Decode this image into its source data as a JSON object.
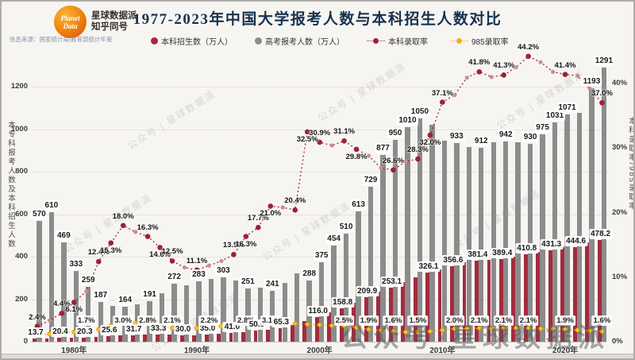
{
  "header": {
    "logo_line1": "Planet",
    "logo_line2": "Data",
    "brand_line1": "星球数据派",
    "brand_line2": "知乎同号",
    "source_note": "信息来源：国家统计局|教育部统计年鉴",
    "title": "1977-2023年中国大学报考人数与本科招生人数对比"
  },
  "legend": [
    {
      "label": "本科招生数（万人）",
      "color": "#a32b3d",
      "type": "dot"
    },
    {
      "label": "高考报考人数（万人）",
      "color": "#8c8c8c",
      "type": "dot"
    },
    {
      "label": "本科录取率",
      "color": "#9b2335",
      "type": "line-dot"
    },
    {
      "label": "985录取率",
      "color": "#eeb41c",
      "type": "line-dot"
    }
  ],
  "axes": {
    "left": {
      "title": "本专科报考人数及本科招生人数",
      "ticks": [
        0,
        200,
        400,
        600,
        800,
        1000,
        1200
      ],
      "max": 1200
    },
    "right": {
      "title": "本科录取率/985录取率",
      "ticks": [
        "0%",
        "10%",
        "20%",
        "30%",
        "40%"
      ],
      "max_pct": 40
    },
    "x": {
      "ticks": [
        {
          "label": "1980年",
          "year": 1980
        },
        {
          "label": "1990年",
          "year": 1990
        },
        {
          "label": "2000年",
          "year": 2000
        },
        {
          "label": "2010年",
          "year": 2010
        },
        {
          "label": "2020年",
          "year": 2020
        }
      ]
    }
  },
  "watermark": {
    "tile": "公众号 | 星球数据派",
    "big": "公众号·星球数据派"
  },
  "chart_data": {
    "type": "bar+line",
    "title": "1977-2023年中国大学报考人数与本科招生人数对比",
    "x_range": [
      1977,
      2023
    ],
    "left_axis_range": [
      0,
      1200
    ],
    "right_axis_range_pct": [
      0,
      40
    ],
    "grid": true,
    "years": [
      1977,
      1978,
      1979,
      1980,
      1981,
      1982,
      1983,
      1984,
      1985,
      1986,
      1987,
      1988,
      1989,
      1990,
      1991,
      1992,
      1993,
      1994,
      1995,
      1996,
      1997,
      1998,
      1999,
      2000,
      2001,
      2002,
      2003,
      2004,
      2005,
      2006,
      2007,
      2008,
      2009,
      2010,
      2011,
      2012,
      2013,
      2014,
      2015,
      2016,
      2017,
      2018,
      2019,
      2020,
      2021,
      2022,
      2023
    ],
    "series": [
      {
        "name": "高考报考人数(万人)",
        "type": "bar",
        "color": "#8c8c8c",
        "values": [
          570,
          610,
          469,
          333,
          259,
          187,
          167,
          164,
          176,
          191,
          228,
          272,
          266,
          283,
          296,
          303,
          286,
          251,
          253,
          241,
          278,
          320,
          288,
          375,
          454,
          510,
          613,
          729,
          877,
          950,
          1010,
          1050,
          1020,
          946,
          933,
          915,
          912,
          939,
          942,
          940,
          930,
          975,
          1031,
          1071,
          1078,
          1193,
          1291
        ],
        "labels": {
          "1977": "570",
          "1978": "610",
          "1979": "469",
          "1980": "333",
          "1981": "259",
          "1982": "187",
          "1984": "164",
          "1986": "191",
          "1988": "272",
          "1990": "283",
          "1992": "303",
          "1994": "251",
          "1996": "241",
          "1999": "288",
          "2000": "375",
          "2001": "454",
          "2002": "510",
          "2003": "613",
          "2004": "729",
          "2005": "877",
          "2006": "950",
          "2007": "1010",
          "2008": "1050",
          "2011": "933",
          "2013": "912",
          "2015": "942",
          "2017": "930",
          "2018": "975",
          "2019": "1031",
          "2020": "1071",
          "2022": "1193",
          "2023": "1291"
        }
      },
      {
        "name": "本科招生数(万人)",
        "type": "bar",
        "color": "#a32b3d",
        "values": [
          13.7,
          16.0,
          20.4,
          20.3,
          20.3,
          23.2,
          25.6,
          29.5,
          31.7,
          32.0,
          33.3,
          34.0,
          30.0,
          31.4,
          35.0,
          37.9,
          41.0,
          46.0,
          50.6,
          55.0,
          65.3,
          78.0,
          98.0,
          116.0,
          138.0,
          158.8,
          183.0,
          209.9,
          236.0,
          253.1,
          282.0,
          302.0,
          326.1,
          340.0,
          356.6,
          374.0,
          381.4,
          385.0,
          389.4,
          400.0,
          410.8,
          422.0,
          431.3,
          443.0,
          444.6,
          468.0,
          478.2
        ],
        "labels": {
          "1977": "13.7",
          "1979": "20.4",
          "1981": "20.3",
          "1983": "25.6",
          "1985": "31.7",
          "1987": "33.3",
          "1989": "30.0",
          "1991": "35.0",
          "1993": "41.0",
          "1995": "50.6",
          "1997": "65.3",
          "2000": "116.0",
          "2002": "158.8",
          "2004": "209.9",
          "2006": "253.1",
          "2009": "326.1",
          "2011": "356.6",
          "2013": "381.4",
          "2015": "389.4",
          "2017": "410.8",
          "2019": "431.3",
          "2021": "444.6",
          "2023": "478.2"
        }
      },
      {
        "name": "本科录取率",
        "type": "line",
        "unit": "%",
        "color": "#9b2335",
        "values": [
          2.4,
          3.3,
          4.4,
          6.1,
          7.8,
          12.4,
          15.3,
          18.0,
          17.0,
          16.3,
          14.6,
          12.5,
          11.5,
          11.1,
          11.8,
          12.5,
          13.5,
          16.3,
          17.7,
          21.0,
          20.8,
          20.4,
          32.5,
          30.9,
          30.4,
          31.1,
          29.8,
          28.8,
          26.9,
          26.6,
          27.9,
          28.3,
          32.0,
          37.1,
          38.2,
          40.9,
          41.8,
          41.0,
          41.3,
          42.5,
          44.2,
          43.3,
          41.8,
          41.4,
          41.2,
          39.2,
          37.0
        ],
        "labels": {
          "1977": "2.4%",
          "1979": "4.4%",
          "1980": "6.1%",
          "1982": "12.4%",
          "1983": "15.3%",
          "1984": "18.0%",
          "1986": "16.3%",
          "1987": "14.6%",
          "1988": "12.5%",
          "1990": "11.1%",
          "1993": "13.5%",
          "1994": "16.3%",
          "1995": "17.7%",
          "1996": "21.0%",
          "1998": "20.4%",
          "1999": "32.5%",
          "2000": "30.9%",
          "2002": "31.1%",
          "2003": "29.8%",
          "2006": "26.6%",
          "2008": "28.3%",
          "2009": "32.0%",
          "2010": "37.1%",
          "2013": "41.8%",
          "2015": "41.3%",
          "2017": "44.2%",
          "2020": "41.4%",
          "2023": "37.0%"
        }
      },
      {
        "name": "985录取率",
        "type": "line",
        "unit": "%",
        "color": "#eeb41c",
        "values": [
          1.0,
          1.2,
          1.4,
          1.5,
          1.7,
          1.9,
          2.5,
          3.0,
          2.9,
          2.8,
          2.4,
          2.1,
          2.1,
          2.1,
          2.2,
          2.4,
          2.6,
          2.8,
          2.9,
          3.1,
          3.0,
          2.8,
          2.7,
          2.6,
          2.5,
          2.5,
          2.2,
          1.9,
          1.7,
          1.6,
          1.5,
          1.5,
          1.6,
          1.8,
          2.0,
          2.0,
          2.1,
          2.1,
          2.1,
          2.1,
          2.1,
          2.0,
          2.0,
          1.9,
          1.8,
          1.7,
          1.6
        ],
        "labels": {
          "1981": "1.7%",
          "1984": "3.0%",
          "1986": "2.8%",
          "1988": "2.1%",
          "1991": "2.2%",
          "1994": "2.8%",
          "1996": "3.1%",
          "2002": "2.5%",
          "2004": "1.9%",
          "2006": "1.6%",
          "2008": "1.5%",
          "2011": "2.0%",
          "2013": "2.1%",
          "2015": "2.1%",
          "2017": "2.1%",
          "2020": "1.9%",
          "2023": "1.6%"
        }
      }
    ]
  }
}
